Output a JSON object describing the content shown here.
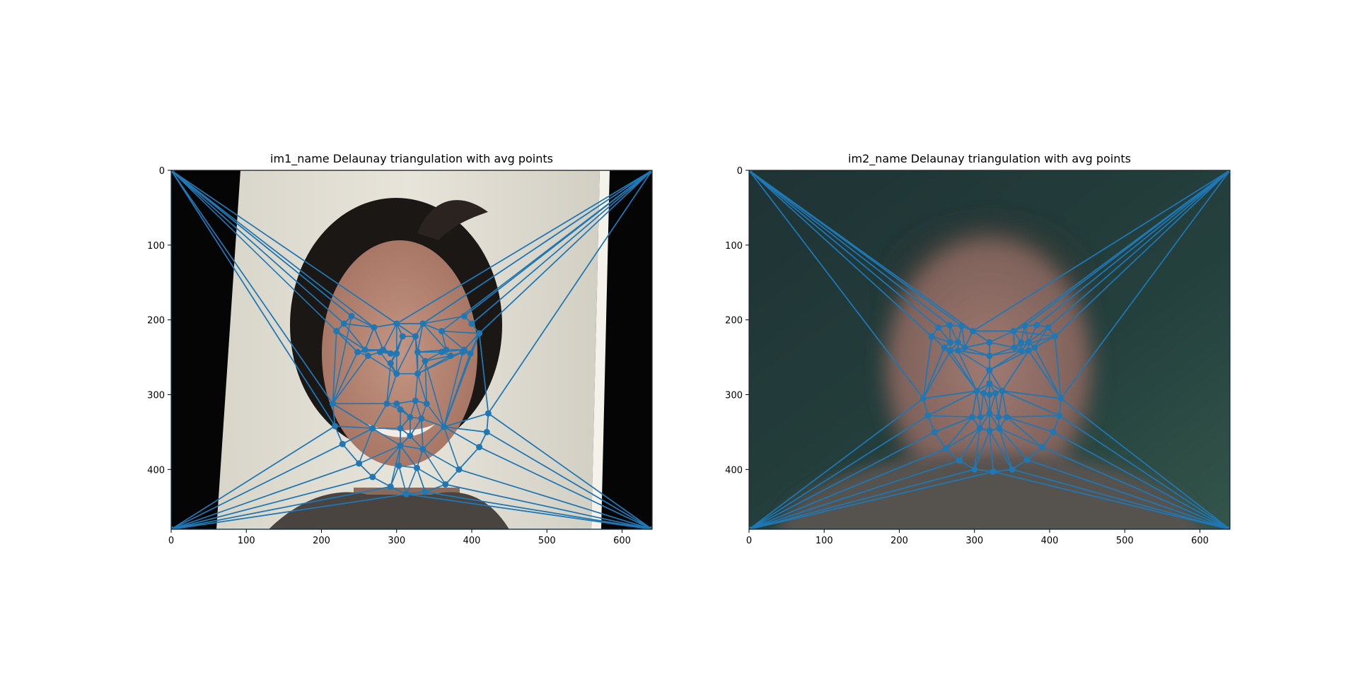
{
  "chart_data": [
    {
      "type": "scatter",
      "title": "im1_name Delaunay triangulation with avg points",
      "xlabel": "",
      "ylabel": "",
      "xlim": [
        0,
        640
      ],
      "ylim": [
        480,
        0
      ],
      "x_ticks": [
        0,
        100,
        200,
        300,
        400,
        500,
        600
      ],
      "y_ticks": [
        0,
        100,
        200,
        300,
        400
      ],
      "grid": false,
      "image": "photo of a person with dark hair smiling in front of a cream wall, black margins left and right",
      "marker_color": "#1f77b4",
      "points": [
        [
          0,
          0
        ],
        [
          640,
          0
        ],
        [
          0,
          480
        ],
        [
          640,
          480
        ],
        [
          240,
          195
        ],
        [
          390,
          195
        ],
        [
          230,
          205
        ],
        [
          400,
          205
        ],
        [
          220,
          215
        ],
        [
          410,
          218
        ],
        [
          270,
          210
        ],
        [
          300,
          205
        ],
        [
          335,
          205
        ],
        [
          360,
          215
        ],
        [
          248,
          243
        ],
        [
          262,
          248
        ],
        [
          278,
          243
        ],
        [
          292,
          245
        ],
        [
          258,
          240
        ],
        [
          282,
          240
        ],
        [
          360,
          243
        ],
        [
          372,
          248
        ],
        [
          388,
          243
        ],
        [
          398,
          245
        ],
        [
          366,
          240
        ],
        [
          390,
          240
        ],
        [
          300,
          245
        ],
        [
          328,
          243
        ],
        [
          325,
          222
        ],
        [
          308,
          222
        ],
        [
          300,
          272
        ],
        [
          328,
          272
        ],
        [
          338,
          255
        ],
        [
          292,
          258
        ],
        [
          287,
          312
        ],
        [
          300,
          312
        ],
        [
          325,
          308
        ],
        [
          340,
          312
        ],
        [
          305,
          320
        ],
        [
          318,
          330
        ],
        [
          268,
          345
        ],
        [
          363,
          343
        ],
        [
          305,
          345
        ],
        [
          333,
          332
        ],
        [
          318,
          355
        ],
        [
          215,
          312
        ],
        [
          218,
          342
        ],
        [
          228,
          366
        ],
        [
          250,
          392
        ],
        [
          268,
          410
        ],
        [
          292,
          423
        ],
        [
          313,
          433
        ],
        [
          338,
          430
        ],
        [
          365,
          420
        ],
        [
          383,
          400
        ],
        [
          410,
          370
        ],
        [
          420,
          350
        ],
        [
          422,
          325
        ],
        [
          305,
          368
        ],
        [
          335,
          373
        ],
        [
          303,
          395
        ],
        [
          327,
          398
        ]
      ],
      "triangles": [
        [
          0,
          2,
          46
        ],
        [
          0,
          4,
          45
        ],
        [
          0,
          45,
          46
        ],
        [
          0,
          4,
          6
        ],
        [
          0,
          6,
          8
        ],
        [
          0,
          4,
          10
        ],
        [
          0,
          10,
          11
        ],
        [
          1,
          5,
          7
        ],
        [
          1,
          7,
          9
        ],
        [
          1,
          9,
          57
        ],
        [
          1,
          57,
          3
        ],
        [
          1,
          5,
          12
        ],
        [
          1,
          12,
          13
        ],
        [
          1,
          11,
          12
        ],
        [
          0,
          11,
          1
        ],
        [
          2,
          46,
          47
        ],
        [
          2,
          47,
          48
        ],
        [
          2,
          48,
          49
        ],
        [
          2,
          49,
          50
        ],
        [
          2,
          50,
          51
        ],
        [
          2,
          51,
          3
        ],
        [
          3,
          51,
          52
        ],
        [
          3,
          52,
          53
        ],
        [
          3,
          53,
          54
        ],
        [
          3,
          54,
          55
        ],
        [
          3,
          55,
          56
        ],
        [
          3,
          56,
          57
        ],
        [
          8,
          45,
          14
        ],
        [
          8,
          14,
          18
        ],
        [
          6,
          8,
          18
        ],
        [
          4,
          6,
          10
        ],
        [
          10,
          18,
          19
        ],
        [
          10,
          19,
          11
        ],
        [
          6,
          18,
          10
        ],
        [
          14,
          15,
          45
        ],
        [
          15,
          16,
          30
        ],
        [
          16,
          17,
          26
        ],
        [
          17,
          19,
          26
        ],
        [
          18,
          19,
          14
        ],
        [
          19,
          17,
          16
        ],
        [
          11,
          29,
          26
        ],
        [
          11,
          12,
          28
        ],
        [
          28,
          29,
          11
        ],
        [
          26,
          29,
          33
        ],
        [
          27,
          28,
          12
        ],
        [
          12,
          13,
          24
        ],
        [
          13,
          25,
          9
        ],
        [
          20,
          24,
          27
        ],
        [
          20,
          21,
          32
        ],
        [
          21,
          22,
          31
        ],
        [
          22,
          23,
          41
        ],
        [
          23,
          25,
          9
        ],
        [
          24,
          25,
          20
        ],
        [
          22,
          25,
          23
        ],
        [
          26,
          30,
          33
        ],
        [
          27,
          31,
          32
        ],
        [
          30,
          31,
          28
        ],
        [
          30,
          33,
          34
        ],
        [
          31,
          37,
          36
        ],
        [
          32,
          37,
          41
        ],
        [
          34,
          35,
          38
        ],
        [
          35,
          36,
          39
        ],
        [
          36,
          37,
          43
        ],
        [
          38,
          39,
          42
        ],
        [
          39,
          44,
          42
        ],
        [
          43,
          44,
          39
        ],
        [
          45,
          34,
          40
        ],
        [
          45,
          46,
          40
        ],
        [
          46,
          47,
          40
        ],
        [
          47,
          48,
          40
        ],
        [
          48,
          49,
          58
        ],
        [
          49,
          50,
          58
        ],
        [
          50,
          51,
          60
        ],
        [
          51,
          52,
          61
        ],
        [
          52,
          53,
          61
        ],
        [
          53,
          54,
          59
        ],
        [
          54,
          55,
          41
        ],
        [
          55,
          56,
          41
        ],
        [
          56,
          57,
          41
        ],
        [
          40,
          42,
          58
        ],
        [
          42,
          44,
          58
        ],
        [
          44,
          43,
          59
        ],
        [
          43,
          41,
          59
        ],
        [
          58,
          60,
          61
        ],
        [
          58,
          59,
          61
        ],
        [
          57,
          9,
          41
        ],
        [
          9,
          23,
          41
        ]
      ]
    },
    {
      "type": "scatter",
      "title": "im2_name Delaunay triangulation with avg points",
      "xlabel": "",
      "ylabel": "",
      "xlim": [
        0,
        640
      ],
      "ylim": [
        480,
        0
      ],
      "x_ticks": [
        0,
        100,
        200,
        300,
        400,
        500,
        600
      ],
      "y_ticks": [
        0,
        100,
        200,
        300,
        400
      ],
      "grid": false,
      "image": "blurred average face of a man with short brown hair on a dark teal background",
      "marker_color": "#1f77b4",
      "points": [
        [
          0,
          0
        ],
        [
          640,
          0
        ],
        [
          0,
          480
        ],
        [
          640,
          480
        ],
        [
          232,
          305
        ],
        [
          238,
          328
        ],
        [
          247,
          350
        ],
        [
          262,
          372
        ],
        [
          280,
          388
        ],
        [
          300,
          400
        ],
        [
          325,
          403
        ],
        [
          350,
          400
        ],
        [
          370,
          387
        ],
        [
          390,
          370
        ],
        [
          405,
          350
        ],
        [
          413,
          328
        ],
        [
          415,
          305
        ],
        [
          243,
          222
        ],
        [
          252,
          210
        ],
        [
          267,
          207
        ],
        [
          283,
          208
        ],
        [
          298,
          215
        ],
        [
          352,
          215
        ],
        [
          367,
          208
        ],
        [
          383,
          207
        ],
        [
          398,
          210
        ],
        [
          407,
          222
        ],
        [
          320,
          230
        ],
        [
          320,
          248
        ],
        [
          320,
          267
        ],
        [
          320,
          285
        ],
        [
          303,
          295
        ],
        [
          312,
          298
        ],
        [
          320,
          300
        ],
        [
          328,
          298
        ],
        [
          337,
          295
        ],
        [
          260,
          237
        ],
        [
          268,
          230
        ],
        [
          278,
          230
        ],
        [
          287,
          237
        ],
        [
          278,
          241
        ],
        [
          268,
          241
        ],
        [
          353,
          237
        ],
        [
          362,
          230
        ],
        [
          372,
          230
        ],
        [
          380,
          237
        ],
        [
          372,
          241
        ],
        [
          362,
          241
        ],
        [
          297,
          330
        ],
        [
          308,
          330
        ],
        [
          320,
          325
        ],
        [
          332,
          330
        ],
        [
          343,
          330
        ],
        [
          333,
          345
        ],
        [
          320,
          348
        ],
        [
          307,
          345
        ]
      ],
      "triangles": [
        [
          0,
          2,
          4
        ],
        [
          0,
          4,
          17
        ],
        [
          0,
          17,
          18
        ],
        [
          0,
          18,
          19
        ],
        [
          0,
          19,
          20
        ],
        [
          0,
          20,
          21
        ],
        [
          0,
          21,
          1
        ],
        [
          1,
          21,
          22
        ],
        [
          1,
          22,
          23
        ],
        [
          1,
          23,
          24
        ],
        [
          1,
          24,
          25
        ],
        [
          1,
          25,
          26
        ],
        [
          1,
          26,
          16
        ],
        [
          1,
          16,
          3
        ],
        [
          2,
          4,
          5
        ],
        [
          2,
          5,
          6
        ],
        [
          2,
          6,
          7
        ],
        [
          2,
          7,
          8
        ],
        [
          2,
          8,
          9
        ],
        [
          2,
          9,
          10
        ],
        [
          2,
          10,
          3
        ],
        [
          3,
          10,
          11
        ],
        [
          3,
          11,
          12
        ],
        [
          3,
          12,
          13
        ],
        [
          3,
          13,
          14
        ],
        [
          3,
          14,
          15
        ],
        [
          3,
          15,
          16
        ],
        [
          4,
          17,
          36
        ],
        [
          17,
          18,
          37
        ],
        [
          18,
          19,
          37
        ],
        [
          19,
          20,
          38
        ],
        [
          20,
          21,
          39
        ],
        [
          17,
          36,
          37
        ],
        [
          36,
          37,
          41
        ],
        [
          37,
          38,
          41
        ],
        [
          38,
          39,
          40
        ],
        [
          38,
          40,
          41
        ],
        [
          20,
          38,
          39
        ],
        [
          21,
          39,
          27
        ],
        [
          21,
          22,
          27
        ],
        [
          22,
          26,
          42
        ],
        [
          22,
          42,
          43
        ],
        [
          23,
          24,
          44
        ],
        [
          24,
          25,
          44
        ],
        [
          25,
          26,
          45
        ],
        [
          26,
          45,
          16
        ],
        [
          22,
          23,
          43
        ],
        [
          42,
          43,
          47
        ],
        [
          43,
          44,
          47
        ],
        [
          44,
          45,
          46
        ],
        [
          44,
          46,
          47
        ],
        [
          42,
          47,
          28
        ],
        [
          42,
          28,
          27
        ],
        [
          39,
          27,
          28
        ],
        [
          39,
          40,
          28
        ],
        [
          40,
          28,
          29
        ],
        [
          36,
          41,
          4
        ],
        [
          41,
          40,
          31
        ],
        [
          4,
          36,
          31
        ],
        [
          29,
          31,
          30
        ],
        [
          29,
          30,
          35
        ],
        [
          31,
          32,
          30
        ],
        [
          32,
          33,
          30
        ],
        [
          33,
          34,
          30
        ],
        [
          34,
          35,
          30
        ],
        [
          29,
          46,
          35
        ],
        [
          46,
          47,
          29
        ],
        [
          45,
          46,
          16
        ],
        [
          4,
          5,
          31
        ],
        [
          5,
          6,
          48
        ],
        [
          5,
          31,
          48
        ],
        [
          6,
          7,
          48
        ],
        [
          7,
          8,
          55
        ],
        [
          8,
          9,
          55
        ],
        [
          9,
          10,
          54
        ],
        [
          10,
          11,
          54
        ],
        [
          11,
          12,
          53
        ],
        [
          12,
          13,
          53
        ],
        [
          13,
          14,
          52
        ],
        [
          14,
          15,
          52
        ],
        [
          15,
          16,
          35
        ],
        [
          15,
          35,
          52
        ],
        [
          16,
          46,
          35
        ],
        [
          31,
          32,
          49
        ],
        [
          31,
          48,
          49
        ],
        [
          32,
          33,
          50
        ],
        [
          33,
          34,
          50
        ],
        [
          34,
          35,
          51
        ],
        [
          35,
          51,
          52
        ],
        [
          48,
          49,
          55
        ],
        [
          49,
          50,
          55
        ],
        [
          50,
          54,
          55
        ],
        [
          50,
          51,
          53
        ],
        [
          50,
          53,
          54
        ],
        [
          51,
          52,
          53
        ],
        [
          7,
          48,
          55
        ],
        [
          9,
          54,
          55
        ],
        [
          11,
          53,
          54
        ]
      ]
    }
  ]
}
